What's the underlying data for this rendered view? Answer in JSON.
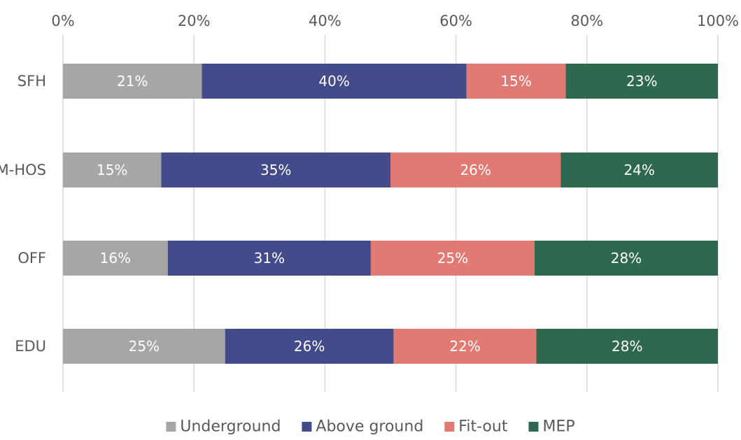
{
  "chart_data": {
    "type": "bar",
    "orientation": "horizontal",
    "stacked": true,
    "percent_stacked": true,
    "categories": [
      "SFH",
      "M-HOS",
      "OFF",
      "EDU"
    ],
    "series": [
      {
        "name": "Underground",
        "color": "#a6a6a6",
        "values": [
          21,
          15,
          16,
          25
        ],
        "labels": [
          "21%",
          "15%",
          "16%",
          "25%"
        ]
      },
      {
        "name": "Above ground",
        "color": "#444b8a",
        "values": [
          40,
          35,
          31,
          26
        ],
        "labels": [
          "40%",
          "35%",
          "31%",
          "26%"
        ]
      },
      {
        "name": "Fit-out",
        "color": "#e07a72",
        "values": [
          15,
          26,
          25,
          22
        ],
        "labels": [
          "15%",
          "26%",
          "25%",
          "22%"
        ]
      },
      {
        "name": "MEP",
        "color": "#2e684e",
        "values": [
          23,
          24,
          28,
          28
        ],
        "labels": [
          "23%",
          "24%",
          "28%",
          "28%"
        ]
      }
    ],
    "xlim": [
      0,
      100
    ],
    "x_ticks": [
      "0%",
      "20%",
      "40%",
      "60%",
      "80%",
      "100%"
    ],
    "x_tick_values": [
      0,
      20,
      40,
      60,
      80,
      100
    ],
    "x_axis_position": "top",
    "grid": true,
    "legend": "bottom",
    "title": "",
    "xlabel": "",
    "ylabel": ""
  }
}
